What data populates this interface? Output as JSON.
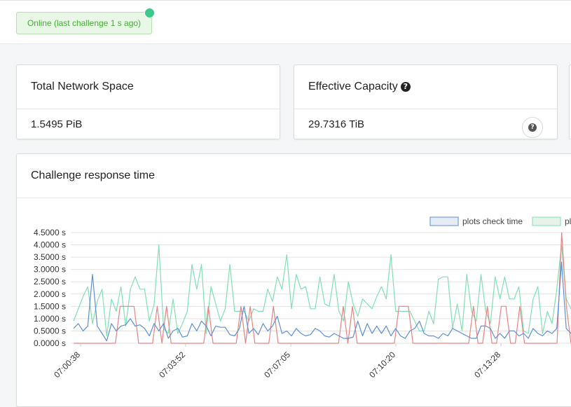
{
  "status": {
    "text": "Online (last challenge 1 s ago)"
  },
  "cards": {
    "network_space": {
      "title": "Total Network Space",
      "value": "1.5495 PiB"
    },
    "effective_capacity": {
      "title": "Effective Capacity",
      "value": "29.7316 TiB",
      "help_icon": "question-circle-icon"
    }
  },
  "chart_card": {
    "title": "Challenge response time"
  },
  "colors": {
    "online_green": "#3fae32",
    "status_dot": "#3cc98a",
    "series_blue": "#5b8fd6",
    "series_green": "#7fe0b4",
    "series_red": "#e88383"
  },
  "chart_data": {
    "type": "line",
    "title": "",
    "xlabel": "",
    "ylabel": "",
    "ylim": [
      0,
      4.5
    ],
    "y_ticks": [
      "0.0000 s",
      "0.5000 s",
      "1.0000 s",
      "1.5000 s",
      "2.0000 s",
      "2.5000 s",
      "3.0000 s",
      "3.5000 s",
      "4.0000 s",
      "4.5000 s"
    ],
    "x_ticks": [
      "07:00:38",
      "07:03:52",
      "07:07:05",
      "07:10:20",
      "07:13:28"
    ],
    "legend": [
      {
        "label": "plots check time"
      },
      {
        "label": "pl"
      }
    ],
    "grid": true,
    "series": [
      {
        "name": "plots check time",
        "values": [
          0.6,
          0.8,
          0.5,
          0.7,
          2.8,
          0.7,
          0.4,
          0.1,
          0.8,
          0.5,
          0.7,
          0.75,
          1.0,
          0.7,
          0.75,
          0.6,
          0.3,
          0.8,
          0.5,
          0.8,
          0.2,
          0.5,
          0.6,
          0.25,
          0.3,
          0.8,
          0.5,
          0.9,
          0.7,
          0.3,
          0.7,
          0.65,
          0.65,
          0.35,
          0.3,
          0.6,
          1.5,
          0.4,
          0.6,
          0.35,
          0.8,
          0.5,
          0.7,
          1.1,
          0.4,
          0.5,
          0.3,
          0.6,
          0.4,
          0.3,
          0.35,
          0.6,
          0.5,
          0.3,
          0.25,
          0.4,
          0.3,
          0.2,
          0.2,
          0.25,
          0.9,
          0.3,
          0.8,
          0.4,
          0.7,
          0.4,
          0.7,
          0.3,
          0.6,
          0.3,
          0.2,
          0.5,
          0.6,
          0.9,
          0.4,
          0.3,
          0.3,
          0.2,
          0.4,
          0.3,
          0.6,
          0.5,
          0.4,
          0.3,
          0.2,
          0.2,
          0.7,
          0.7,
          0.6,
          0.2,
          0.4,
          0.2,
          0.5,
          0.5,
          0.3,
          0.4,
          0.2,
          0.6,
          0.4,
          0.3,
          0.5,
          0.4,
          0.6,
          3.3,
          0.6,
          0.4
        ]
      },
      {
        "name": "pl",
        "values": [
          0.9,
          1.4,
          1.9,
          2.3,
          0.8,
          1.7,
          2.2,
          0.3,
          1.8,
          1.3,
          2.3,
          0.7,
          2.2,
          2.7,
          2.2,
          2.2,
          0.9,
          1.6,
          4.0,
          0.6,
          0.4,
          1.8,
          0.4,
          0.8,
          1.3,
          3.2,
          2.2,
          3.2,
          0.4,
          2.3,
          1.6,
          0.9,
          1.4,
          3.2,
          1.3,
          1.3,
          1.3,
          0.9,
          1.4,
          1.3,
          1.3,
          2.2,
          1.7,
          2.7,
          2.2,
          3.6,
          1.4,
          2.8,
          2.2,
          2.3,
          1.4,
          1.4,
          2.7,
          1.6,
          1.5,
          2.8,
          1.3,
          0.9,
          2.5,
          1.6,
          1.1,
          1.8,
          1.6,
          1.4,
          1.9,
          2.3,
          1.8,
          3.6,
          1.3,
          1.3,
          1.3,
          1.3,
          0.9,
          0.5,
          0.5,
          1.3,
          0.8,
          2.6,
          2.7,
          2.7,
          0.6,
          1.6,
          0.5,
          2.8,
          1.3,
          0.9,
          2.8,
          1.3,
          0.8,
          2.7,
          1.8,
          2.7,
          1.8,
          1.8,
          2.3,
          0.5,
          0.4,
          1.8,
          2.3,
          0.4,
          1.3,
          0.8,
          2.2,
          4.0,
          1.8,
          1.4
        ]
      },
      {
        "name": "",
        "values": [
          0,
          0,
          0,
          0,
          0,
          0,
          0,
          0,
          0,
          0,
          1.5,
          1.5,
          1.5,
          1.5,
          0,
          0,
          0,
          0,
          1.5,
          0,
          1.5,
          0,
          0,
          0,
          0,
          0,
          0,
          0,
          0,
          1.5,
          0,
          0,
          0,
          0,
          0,
          0,
          1.5,
          0,
          1.5,
          0,
          0,
          0,
          0,
          1.5,
          0,
          0,
          0,
          0,
          0,
          0,
          0,
          0,
          0,
          0,
          0,
          0,
          0,
          0,
          1.5,
          0,
          1.5,
          0,
          0,
          0,
          0,
          0,
          0,
          0,
          0,
          0,
          1.5,
          1.5,
          1.5,
          0,
          0,
          0,
          0,
          0,
          0,
          0,
          0,
          0,
          0,
          0,
          0,
          0,
          1.5,
          0,
          0,
          1.5,
          0,
          0,
          1.5,
          1.5,
          0,
          0,
          1.5,
          0,
          0,
          0,
          0,
          0,
          0,
          0,
          0,
          4.5,
          1.5,
          0
        ]
      }
    ]
  }
}
